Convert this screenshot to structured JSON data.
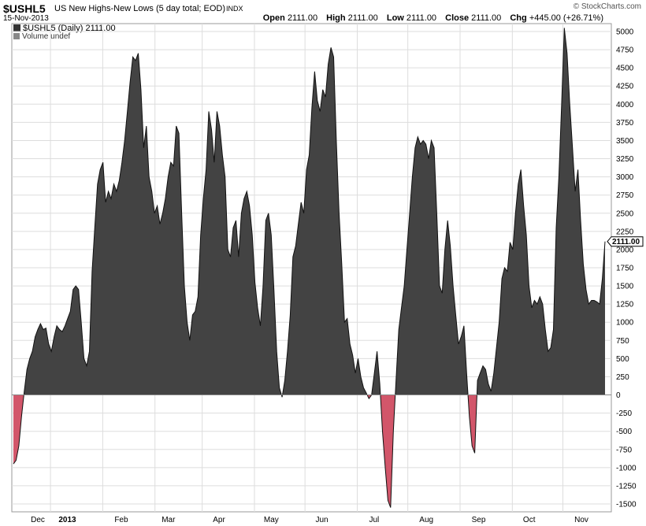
{
  "header": {
    "symbol": "$USHL5",
    "subtitle": "US New Highs-New Lows (5 day total; EOD)",
    "exchange": "INDX",
    "date": "15-Nov-2013",
    "watermark": "© StockCharts.com",
    "open_label": "Open",
    "open_value": "2111.00",
    "high_label": "High",
    "high_value": "2111.00",
    "low_label": "Low",
    "low_value": "2111.00",
    "close_label": "Close",
    "close_value": "2111.00",
    "chg_label": "Chg",
    "chg_value": "+445.00 (+26.71%)",
    "chg_arrow_icon": "up-arrow-icon"
  },
  "legend": {
    "series_label": "$USHL5 (Daily) 2111.00",
    "volume_label": "Volume undef"
  },
  "colors": {
    "positive_fill": "#434343",
    "negative_fill": "#d2566a",
    "outline": "#111111",
    "grid": "#dddddd",
    "zero_line": "#888888",
    "background": "#ffffff"
  },
  "chart_data": {
    "type": "area",
    "ylim": [
      -1600,
      5100
    ],
    "y_ticks": [
      5000,
      4750,
      4500,
      4250,
      4000,
      3750,
      3500,
      3250,
      3000,
      2750,
      2500,
      2250,
      2000,
      1750,
      1500,
      1250,
      1000,
      750,
      500,
      250,
      0,
      -250,
      -500,
      -750,
      -1000,
      -1250,
      -1500
    ],
    "x_labels": [
      "Dec",
      "2013",
      "Feb",
      "Mar",
      "Apr",
      "May",
      "Jun",
      "Jul",
      "Aug",
      "Sep",
      "Oct",
      "Nov"
    ],
    "x_label_day": [
      14.5,
      32,
      64,
      92,
      122,
      153,
      183,
      214,
      245,
      276,
      306,
      337
    ],
    "month_boundaries": [
      22,
      53,
      84,
      112,
      143,
      173,
      204,
      234,
      265,
      296,
      326
    ],
    "last_value_label": "2111.00",
    "x_domain": [
      0,
      351
    ],
    "points": [
      [
        0,
        -950
      ],
      [
        1,
        -900
      ],
      [
        2,
        -700
      ],
      [
        3,
        -300
      ],
      [
        4,
        50
      ],
      [
        5,
        350
      ],
      [
        6,
        500
      ],
      [
        7,
        600
      ],
      [
        8,
        800
      ],
      [
        9,
        900
      ],
      [
        10,
        980
      ],
      [
        11,
        900
      ],
      [
        12,
        920
      ],
      [
        13,
        700
      ],
      [
        14,
        600
      ],
      [
        15,
        800
      ],
      [
        16,
        950
      ],
      [
        17,
        900
      ],
      [
        18,
        870
      ],
      [
        19,
        950
      ],
      [
        20,
        1050
      ],
      [
        21,
        1150
      ],
      [
        22,
        1450
      ],
      [
        23,
        1500
      ],
      [
        24,
        1450
      ],
      [
        25,
        1000
      ],
      [
        26,
        500
      ],
      [
        27,
        400
      ],
      [
        28,
        600
      ],
      [
        29,
        1700
      ],
      [
        30,
        2300
      ],
      [
        31,
        2900
      ],
      [
        32,
        3100
      ],
      [
        33,
        3200
      ],
      [
        34,
        2650
      ],
      [
        35,
        2800
      ],
      [
        36,
        2700
      ],
      [
        37,
        2900
      ],
      [
        38,
        2800
      ],
      [
        39,
        2950
      ],
      [
        40,
        3200
      ],
      [
        41,
        3500
      ],
      [
        42,
        3900
      ],
      [
        43,
        4300
      ],
      [
        44,
        4650
      ],
      [
        45,
        4600
      ],
      [
        46,
        4700
      ],
      [
        47,
        4200
      ],
      [
        48,
        3400
      ],
      [
        49,
        3700
      ],
      [
        50,
        3000
      ],
      [
        51,
        2800
      ],
      [
        52,
        2500
      ],
      [
        53,
        2600
      ],
      [
        54,
        2350
      ],
      [
        55,
        2500
      ],
      [
        56,
        2700
      ],
      [
        57,
        3000
      ],
      [
        58,
        3200
      ],
      [
        59,
        3150
      ],
      [
        60,
        3700
      ],
      [
        61,
        3600
      ],
      [
        62,
        2500
      ],
      [
        63,
        1500
      ],
      [
        64,
        1000
      ],
      [
        65,
        750
      ],
      [
        66,
        1100
      ],
      [
        67,
        1150
      ],
      [
        68,
        1350
      ],
      [
        69,
        2200
      ],
      [
        70,
        2700
      ],
      [
        71,
        3100
      ],
      [
        72,
        3900
      ],
      [
        73,
        3650
      ],
      [
        74,
        3200
      ],
      [
        75,
        3900
      ],
      [
        76,
        3700
      ],
      [
        77,
        3300
      ],
      [
        78,
        3000
      ],
      [
        79,
        2000
      ],
      [
        80,
        1900
      ],
      [
        81,
        2300
      ],
      [
        82,
        2400
      ],
      [
        83,
        1900
      ],
      [
        84,
        2500
      ],
      [
        85,
        2700
      ],
      [
        86,
        2800
      ],
      [
        87,
        2600
      ],
      [
        88,
        2200
      ],
      [
        89,
        1550
      ],
      [
        90,
        1200
      ],
      [
        91,
        950
      ],
      [
        92,
        1500
      ],
      [
        93,
        2400
      ],
      [
        94,
        2500
      ],
      [
        95,
        2200
      ],
      [
        96,
        1450
      ],
      [
        97,
        600
      ],
      [
        98,
        100
      ],
      [
        99,
        -30
      ],
      [
        100,
        200
      ],
      [
        101,
        600
      ],
      [
        102,
        1100
      ],
      [
        103,
        1900
      ],
      [
        104,
        2050
      ],
      [
        105,
        2350
      ],
      [
        106,
        2650
      ],
      [
        107,
        2500
      ],
      [
        108,
        3100
      ],
      [
        109,
        3300
      ],
      [
        110,
        3950
      ],
      [
        111,
        4450
      ],
      [
        112,
        4050
      ],
      [
        113,
        3900
      ],
      [
        114,
        4200
      ],
      [
        115,
        4100
      ],
      [
        116,
        4550
      ],
      [
        117,
        4780
      ],
      [
        118,
        4650
      ],
      [
        119,
        3500
      ],
      [
        120,
        2500
      ],
      [
        121,
        1800
      ],
      [
        122,
        1000
      ],
      [
        123,
        1050
      ],
      [
        124,
        700
      ],
      [
        125,
        550
      ],
      [
        126,
        300
      ],
      [
        127,
        500
      ],
      [
        128,
        250
      ],
      [
        129,
        100
      ],
      [
        130,
        30
      ],
      [
        131,
        -50
      ],
      [
        132,
        0
      ],
      [
        133,
        300
      ],
      [
        134,
        600
      ],
      [
        135,
        150
      ],
      [
        136,
        -500
      ],
      [
        137,
        -1000
      ],
      [
        138,
        -1450
      ],
      [
        139,
        -1550
      ],
      [
        140,
        -500
      ],
      [
        141,
        200
      ],
      [
        142,
        900
      ],
      [
        143,
        1200
      ],
      [
        144,
        1500
      ],
      [
        145,
        2000
      ],
      [
        146,
        2500
      ],
      [
        147,
        3000
      ],
      [
        148,
        3400
      ],
      [
        149,
        3550
      ],
      [
        150,
        3450
      ],
      [
        151,
        3500
      ],
      [
        152,
        3450
      ],
      [
        153,
        3250
      ],
      [
        154,
        3500
      ],
      [
        155,
        3400
      ],
      [
        156,
        2500
      ],
      [
        157,
        1500
      ],
      [
        158,
        1400
      ],
      [
        159,
        2000
      ],
      [
        160,
        2400
      ],
      [
        161,
        2050
      ],
      [
        162,
        1500
      ],
      [
        163,
        1100
      ],
      [
        164,
        700
      ],
      [
        165,
        800
      ],
      [
        166,
        950
      ],
      [
        167,
        300
      ],
      [
        168,
        -300
      ],
      [
        169,
        -700
      ],
      [
        170,
        -800
      ],
      [
        171,
        200
      ],
      [
        172,
        300
      ],
      [
        173,
        400
      ],
      [
        174,
        350
      ],
      [
        175,
        150
      ],
      [
        176,
        50
      ],
      [
        177,
        300
      ],
      [
        178,
        650
      ],
      [
        179,
        1000
      ],
      [
        180,
        1600
      ],
      [
        181,
        1750
      ],
      [
        182,
        1700
      ],
      [
        183,
        2100
      ],
      [
        184,
        2000
      ],
      [
        185,
        2500
      ],
      [
        186,
        2900
      ],
      [
        187,
        3100
      ],
      [
        188,
        2600
      ],
      [
        189,
        2200
      ],
      [
        190,
        1500
      ],
      [
        191,
        1200
      ],
      [
        192,
        1300
      ],
      [
        193,
        1250
      ],
      [
        194,
        1350
      ],
      [
        195,
        1250
      ],
      [
        196,
        900
      ],
      [
        197,
        600
      ],
      [
        198,
        650
      ],
      [
        199,
        900
      ],
      [
        200,
        2300
      ],
      [
        201,
        3000
      ],
      [
        202,
        4000
      ],
      [
        203,
        5050
      ],
      [
        204,
        4700
      ],
      [
        205,
        4000
      ],
      [
        206,
        3400
      ],
      [
        207,
        2800
      ],
      [
        208,
        3100
      ],
      [
        209,
        2400
      ],
      [
        210,
        1800
      ],
      [
        211,
        1450
      ],
      [
        212,
        1250
      ],
      [
        213,
        1300
      ],
      [
        214,
        1300
      ],
      [
        215,
        1280
      ],
      [
        216,
        1250
      ],
      [
        217,
        1600
      ],
      [
        218,
        2111
      ]
    ],
    "x_of_points_span": [
      17,
      768
    ]
  }
}
